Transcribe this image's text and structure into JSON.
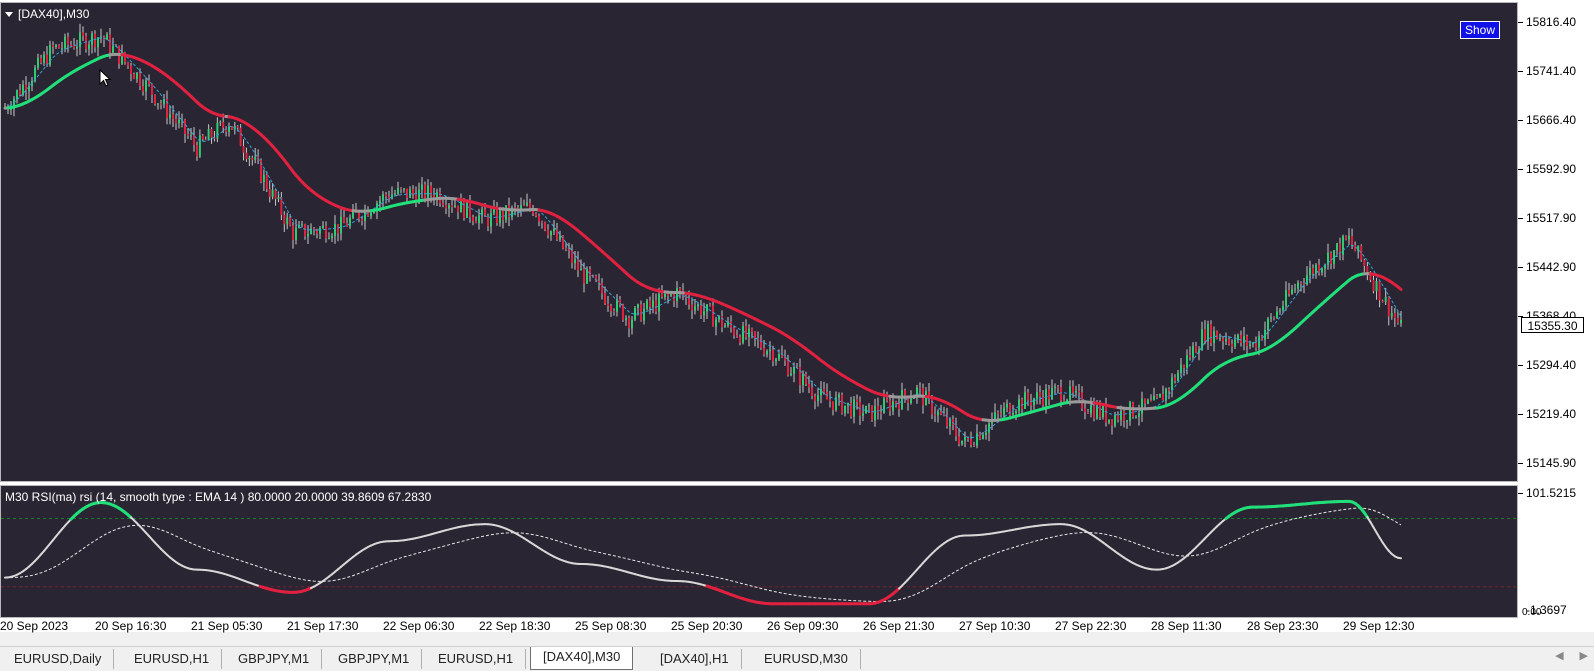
{
  "window": {
    "symbol_title": "[DAX40],M30",
    "show_button": "Show"
  },
  "indicator": {
    "label": "M30 RSI(ma) rsi (14, smooth type : EMA  14 ) 80.0000 20.0000 39.8609 67.2830",
    "axis_top": "101.5215",
    "axis_bottom": "-1.3697",
    "axis_bottom_overlay": "0.00"
  },
  "price_axis": {
    "labels": [
      "15816.40",
      "15741.40",
      "15666.40",
      "15592.90",
      "15517.90",
      "15442.90",
      "15368.40",
      "15294.40",
      "15219.40",
      "15145.90"
    ],
    "current_price": "15355.30"
  },
  "time_axis": {
    "labels": [
      "20 Sep 2023",
      "20 Sep 16:30",
      "21 Sep 05:30",
      "21 Sep 17:30",
      "22 Sep 06:30",
      "22 Sep 18:30",
      "25 Sep 08:30",
      "25 Sep 20:30",
      "26 Sep 09:30",
      "26 Sep 21:30",
      "27 Sep 10:30",
      "27 Sep 22:30",
      "28 Sep 11:30",
      "28 Sep 23:30",
      "29 Sep 12:30"
    ]
  },
  "tabs": [
    {
      "label": "EURUSD,Daily",
      "active": false
    },
    {
      "label": "EURUSD,H1",
      "active": false
    },
    {
      "label": "GBPJPY,M1",
      "active": false
    },
    {
      "label": "GBPJPY,M1",
      "active": false
    },
    {
      "label": "EURUSD,H1",
      "active": false
    },
    {
      "label": "[DAX40],M30",
      "active": true
    },
    {
      "label": "[DAX40],H1",
      "active": false
    },
    {
      "label": "EURUSD,M30",
      "active": false
    }
  ],
  "colors": {
    "background": "#2a2532",
    "bull_candle": "#2ecc71",
    "bear_candle": "#e0213f",
    "ma_up": "#21e07a",
    "ma_down": "#e0213f",
    "ma_flat": "#9a9a9a",
    "fast_ma": "#2aa8e0",
    "rsi_line": "#d8d8d8",
    "level_high": "#1e7a2e",
    "level_low": "#7a1e2e"
  },
  "chart_data": {
    "type": "candlestick",
    "close_points": [
      [
        "20 Sep 2023",
        15690
      ],
      [
        "20 Sep 12:30",
        15780
      ],
      [
        "20 Sep 16:30",
        15800
      ],
      [
        "20 Sep 20:30",
        15720
      ],
      [
        "21 Sep 05:30",
        15630
      ],
      [
        "21 Sep 09:30",
        15670
      ],
      [
        "21 Sep 13:30",
        15590
      ],
      [
        "21 Sep 17:30",
        15500
      ],
      [
        "22 Sep 00:30",
        15510
      ],
      [
        "22 Sep 06:30",
        15560
      ],
      [
        "22 Sep 12:30",
        15560
      ],
      [
        "22 Sep 18:30",
        15520
      ],
      [
        "25 Sep 02:30",
        15540
      ],
      [
        "25 Sep 08:30",
        15440
      ],
      [
        "25 Sep 14:30",
        15370
      ],
      [
        "25 Sep 20:30",
        15410
      ],
      [
        "26 Sep 03:30",
        15360
      ],
      [
        "26 Sep 09:30",
        15320
      ],
      [
        "26 Sep 15:30",
        15250
      ],
      [
        "26 Sep 21:30",
        15225
      ],
      [
        "27 Sep 04:30",
        15260
      ],
      [
        "27 Sep 10:30",
        15180
      ],
      [
        "27 Sep 16:30",
        15240
      ],
      [
        "27 Sep 22:30",
        15260
      ],
      [
        "28 Sep 05:30",
        15220
      ],
      [
        "28 Sep 11:30",
        15240
      ],
      [
        "28 Sep 17:30",
        15350
      ],
      [
        "28 Sep 23:30",
        15330
      ],
      [
        "29 Sep 06:30",
        15430
      ],
      [
        "29 Sep 12:30",
        15490
      ],
      [
        "29 Sep 16:30",
        15355
      ]
    ],
    "rsi_points": [
      [
        "20 Sep 2023",
        28
      ],
      [
        "20 Sep 16:30",
        94
      ],
      [
        "21 Sep 05:30",
        35
      ],
      [
        "21 Sep 17:30",
        15
      ],
      [
        "22 Sep 06:30",
        60
      ],
      [
        "22 Sep 18:30",
        75
      ],
      [
        "25 Sep 08:30",
        40
      ],
      [
        "25 Sep 20:30",
        25
      ],
      [
        "26 Sep 09:30",
        5
      ],
      [
        "26 Sep 21:30",
        5
      ],
      [
        "27 Sep 10:30",
        65
      ],
      [
        "27 Sep 22:30",
        75
      ],
      [
        "28 Sep 11:30",
        35
      ],
      [
        "28 Sep 23:30",
        90
      ],
      [
        "29 Sep 12:30",
        95
      ],
      [
        "29 Sep 16:30",
        45
      ]
    ],
    "ylim": [
      15140,
      15820
    ],
    "rsi_levels": [
      80,
      20
    ],
    "rsi_ylim": [
      -1.3697,
      101.5215
    ]
  }
}
